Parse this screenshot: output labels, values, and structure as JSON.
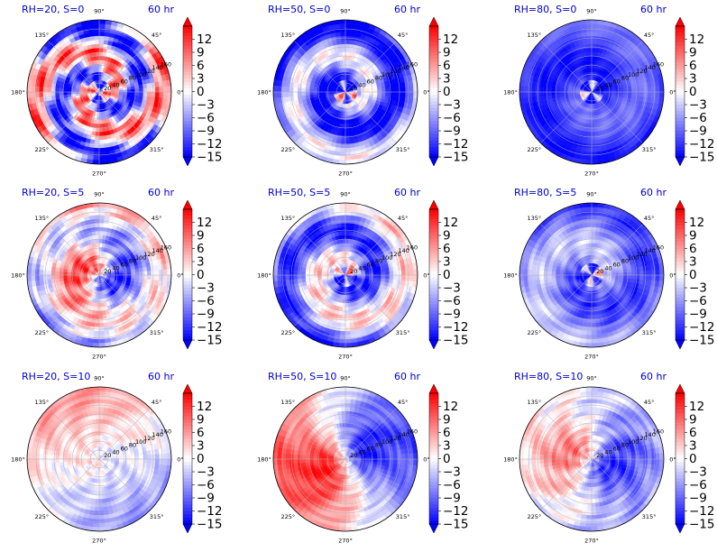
{
  "figure": {
    "colormap": "bwr",
    "colors": {
      "low": "#0000ff",
      "mid": "#ffffff",
      "high": "#ff0000",
      "title": "#0000cc"
    }
  },
  "chart_data": [
    {
      "type": "heatmap",
      "projection": "polar",
      "title": "RH=20, S=0",
      "time_label": "60 hr",
      "theta_ticks": [
        "90°",
        "45°",
        "0°",
        "315°",
        "270°",
        "225°",
        "180°",
        "135°"
      ],
      "r_ticks": [
        "20",
        "40",
        "60",
        "80",
        "100",
        "120",
        "140",
        "160"
      ],
      "r_label_angle_deg": 22.5,
      "colorbar_ticks": [
        12,
        9,
        6,
        3,
        0,
        -3,
        -6,
        -9,
        -12,
        -15
      ],
      "vlim": [
        -15,
        15
      ],
      "colorbar_extend": "both",
      "pattern": {
        "bias": -0.15,
        "spiral": 0.8,
        "arms": 2,
        "twist": 0.05,
        "noise": 0.5
      }
    },
    {
      "type": "heatmap",
      "projection": "polar",
      "title": "RH=50, S=0",
      "time_label": "60 hr",
      "theta_ticks": [
        "90°",
        "45°",
        "0°",
        "315°",
        "270°",
        "225°",
        "180°",
        "135°"
      ],
      "r_ticks": [
        "20",
        "40",
        "60",
        "80",
        "100",
        "120",
        "140",
        "160"
      ],
      "r_label_angle_deg": 22.5,
      "colorbar_ticks": [
        12,
        9,
        6,
        3,
        0,
        -3,
        -6,
        -9,
        -12,
        -15
      ],
      "vlim": [
        -15,
        15
      ],
      "colorbar_extend": "both",
      "pattern": {
        "bias": -0.55,
        "spiral": 0.55,
        "arms": 1,
        "twist": 0.045,
        "noise": 0.25,
        "core": 0.9
      }
    },
    {
      "type": "heatmap",
      "projection": "polar",
      "title": "RH=80, S=0",
      "time_label": "60 hr",
      "theta_ticks": [
        "90°",
        "45°",
        "0°",
        "315°",
        "270°",
        "225°",
        "180°",
        "135°"
      ],
      "r_ticks": [
        "20",
        "40",
        "60",
        "80",
        "100",
        "120",
        "140",
        "160"
      ],
      "r_label_angle_deg": 22.5,
      "colorbar_ticks": [
        12,
        9,
        6,
        3,
        0,
        -3,
        -6,
        -9,
        -12,
        -15
      ],
      "vlim": [
        -15,
        15
      ],
      "colorbar_extend": "both",
      "pattern": {
        "bias": -0.75,
        "spiral": 0.2,
        "arms": 1,
        "twist": 0.03,
        "noise": 0.12,
        "core": 0.8
      }
    },
    {
      "type": "heatmap",
      "projection": "polar",
      "title": "RH=20, S=5",
      "time_label": "60 hr",
      "theta_ticks": [
        "90°",
        "45°",
        "0°",
        "315°",
        "270°",
        "225°",
        "180°",
        "135°"
      ],
      "r_ticks": [
        "20",
        "40",
        "60",
        "80",
        "100",
        "120",
        "140",
        "160"
      ],
      "r_label_angle_deg": 22.5,
      "colorbar_ticks": [
        12,
        9,
        6,
        3,
        0,
        -3,
        -6,
        -9,
        -12,
        -15
      ],
      "vlim": [
        -15,
        15
      ],
      "colorbar_extend": "both",
      "pattern": {
        "bias": -0.05,
        "spiral": 0.5,
        "arms": 1,
        "twist": 0.03,
        "noise": 0.35,
        "wave": 0.35,
        "phase": 2.6
      }
    },
    {
      "type": "heatmap",
      "projection": "polar",
      "title": "RH=50, S=5",
      "time_label": "60 hr",
      "theta_ticks": [
        "90°",
        "45°",
        "0°",
        "315°",
        "270°",
        "225°",
        "180°",
        "135°"
      ],
      "r_ticks": [
        "20",
        "40",
        "60",
        "80",
        "100",
        "120",
        "140",
        "160"
      ],
      "r_label_angle_deg": 22.5,
      "colorbar_ticks": [
        12,
        9,
        6,
        3,
        0,
        -3,
        -6,
        -9,
        -12,
        -15
      ],
      "vlim": [
        -15,
        15
      ],
      "colorbar_extend": "both",
      "pattern": {
        "bias": -0.35,
        "spiral": 0.55,
        "arms": 1,
        "twist": 0.04,
        "noise": 0.3,
        "core": 0.6
      }
    },
    {
      "type": "heatmap",
      "projection": "polar",
      "title": "RH=80, S=5",
      "time_label": "60 hr",
      "theta_ticks": [
        "90°",
        "45°",
        "0°",
        "315°",
        "270°",
        "225°",
        "180°",
        "135°"
      ],
      "r_ticks": [
        "20",
        "40",
        "60",
        "80",
        "100",
        "120",
        "140",
        "160"
      ],
      "r_label_angle_deg": 22.5,
      "colorbar_ticks": [
        12,
        9,
        6,
        3,
        0,
        -3,
        -6,
        -9,
        -12,
        -15
      ],
      "vlim": [
        -15,
        15
      ],
      "colorbar_extend": "both",
      "pattern": {
        "bias": -0.5,
        "spiral": 0.3,
        "arms": 1,
        "twist": 0.03,
        "noise": 0.2,
        "core": 0.7
      }
    },
    {
      "type": "heatmap",
      "projection": "polar",
      "title": "RH=20, S=10",
      "time_label": "60 hr",
      "theta_ticks": [
        "90°",
        "45°",
        "0°",
        "315°",
        "270°",
        "225°",
        "180°",
        "135°"
      ],
      "r_ticks": [
        "20",
        "40",
        "60",
        "80",
        "100",
        "120",
        "140",
        "160"
      ],
      "r_label_angle_deg": 22.5,
      "colorbar_ticks": [
        12,
        9,
        6,
        3,
        0,
        -3,
        -6,
        -9,
        -12,
        -15
      ],
      "vlim": [
        -15,
        15
      ],
      "colorbar_extend": "both",
      "pattern": {
        "bias": 0.0,
        "spiral": 0.15,
        "arms": 1,
        "twist": 0.02,
        "noise": 0.2,
        "wave": 0.3,
        "phase": 2.4
      }
    },
    {
      "type": "heatmap",
      "projection": "polar",
      "title": "RH=50, S=10",
      "time_label": "60 hr",
      "theta_ticks": [
        "90°",
        "45°",
        "0°",
        "315°",
        "270°",
        "225°",
        "180°",
        "135°"
      ],
      "r_ticks": [
        "20",
        "40",
        "60",
        "80",
        "100",
        "120",
        "140",
        "160"
      ],
      "r_label_angle_deg": 22.5,
      "colorbar_ticks": [
        12,
        9,
        6,
        3,
        0,
        -3,
        -6,
        -9,
        -12,
        -15
      ],
      "vlim": [
        -15,
        15
      ],
      "colorbar_extend": "both",
      "pattern": {
        "bias": 0.0,
        "spiral": 0.15,
        "arms": 1,
        "twist": 0.02,
        "noise": 0.2,
        "wave": 0.85,
        "phase": 3.4
      }
    },
    {
      "type": "heatmap",
      "projection": "polar",
      "title": "RH=80, S=10",
      "time_label": "60 hr",
      "theta_ticks": [
        "90°",
        "45°",
        "0°",
        "315°",
        "270°",
        "225°",
        "180°",
        "135°"
      ],
      "r_ticks": [
        "20",
        "40",
        "60",
        "80",
        "100",
        "120",
        "140",
        "160"
      ],
      "r_label_angle_deg": 22.5,
      "colorbar_ticks": [
        12,
        9,
        6,
        3,
        0,
        -3,
        -6,
        -9,
        -12,
        -15
      ],
      "vlim": [
        -15,
        15
      ],
      "colorbar_extend": "both",
      "pattern": {
        "bias": -0.15,
        "spiral": 0.25,
        "arms": 1,
        "twist": 0.02,
        "noise": 0.25,
        "wave": 0.5,
        "phase": 2.6
      }
    }
  ]
}
